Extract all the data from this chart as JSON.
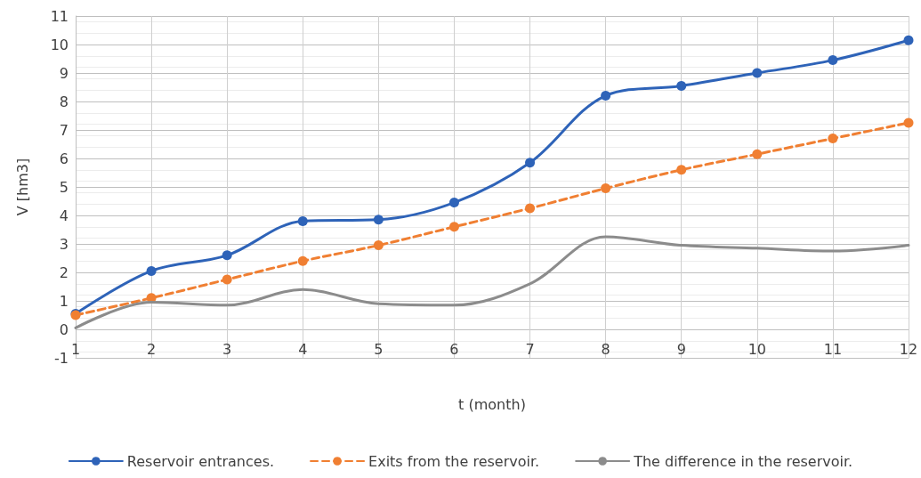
{
  "chart_data": {
    "type": "line",
    "xlabel": "t (month)",
    "ylabel": "V [hm3]",
    "x": [
      1,
      2,
      3,
      4,
      5,
      6,
      7,
      8,
      9,
      10,
      11,
      12
    ],
    "xlim": [
      1,
      12
    ],
    "xticks": [
      1,
      2,
      3,
      4,
      5,
      6,
      7,
      8,
      9,
      10,
      11,
      12
    ],
    "ylim": [
      -1,
      11
    ],
    "yticks": [
      -1,
      0,
      1,
      2,
      3,
      4,
      5,
      6,
      7,
      8,
      9,
      10,
      11
    ],
    "grid": true,
    "legend": "bottom",
    "series": [
      {
        "name": "Reservoir entrances.",
        "color": "#2e63b8",
        "marker": "circle",
        "line_style": "solid",
        "values": [
          0.55,
          2.05,
          2.6,
          3.8,
          3.85,
          4.45,
          5.85,
          8.2,
          8.55,
          9.0,
          9.45,
          10.15
        ]
      },
      {
        "name": "Exits from the reservoir.",
        "color": "#f07f32",
        "marker": "circle",
        "line_style": "dashed",
        "values": [
          0.5,
          1.1,
          1.75,
          2.4,
          2.95,
          3.6,
          4.25,
          4.95,
          5.6,
          6.15,
          6.7,
          7.25
        ]
      },
      {
        "name": "The difference in the reservoir.",
        "color": "#8c8c8c",
        "marker": "none",
        "line_style": "solid",
        "values": [
          0.05,
          0.95,
          0.85,
          1.4,
          0.9,
          0.85,
          1.6,
          3.25,
          2.95,
          2.85,
          2.75,
          2.95
        ]
      }
    ]
  }
}
